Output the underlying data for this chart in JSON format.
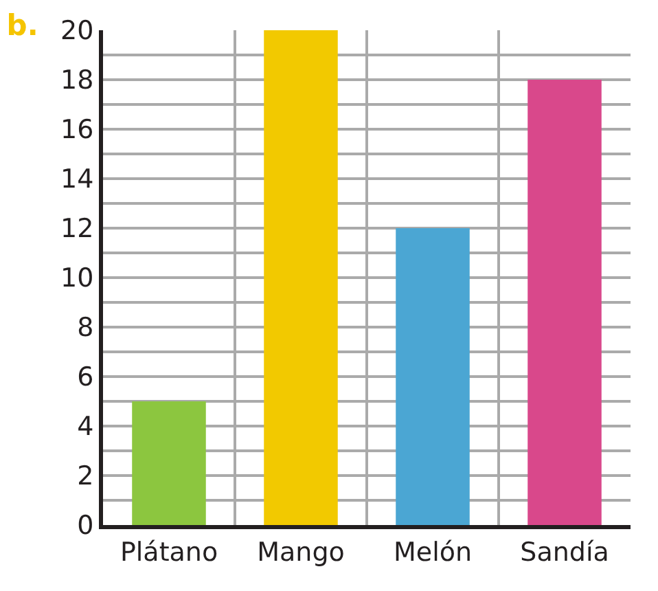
{
  "chart_data": {
    "type": "bar",
    "title": "b.",
    "categories": [
      "Plátano",
      "Mango",
      "Melón",
      "Sandía"
    ],
    "values": [
      5,
      20,
      12,
      18
    ],
    "colors": [
      "#8cc63f",
      "#f2c900",
      "#4ba6d3",
      "#d9488b"
    ],
    "ylim": [
      0,
      20
    ],
    "yticks": [
      0,
      {
        "value": 1,
        "label": null
      },
      2,
      {
        "value": 3,
        "label": null
      },
      4,
      {
        "value": 5,
        "label": null
      },
      6,
      {
        "value": 7,
        "label": null
      },
      8,
      {
        "value": 9,
        "label": null
      },
      10,
      {
        "value": 11,
        "label": null
      },
      12,
      {
        "value": 13,
        "label": null
      },
      14,
      {
        "value": 15,
        "label": null
      },
      16,
      {
        "value": 17,
        "label": null
      },
      18,
      {
        "value": 19,
        "label": null
      },
      20
    ],
    "grid": true
  }
}
